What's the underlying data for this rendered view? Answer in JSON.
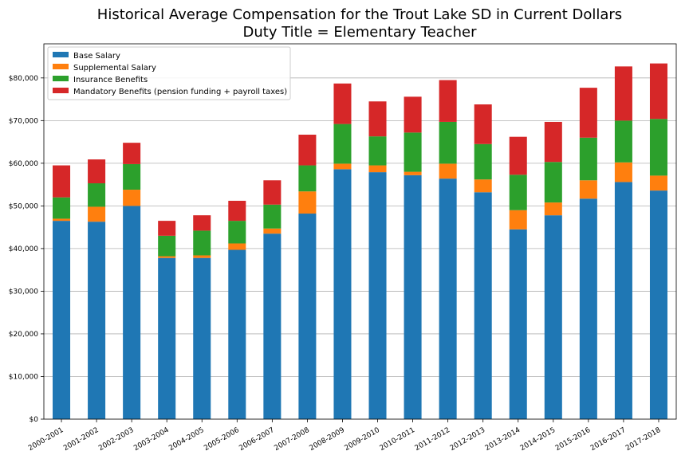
{
  "chart_data": {
    "type": "bar",
    "stacked": true,
    "title": "Historical Average Compensation for the Trout Lake SD in Current Dollars",
    "subtitle": "Duty Title = Elementary Teacher",
    "xlabel": "",
    "ylabel": "",
    "ylim": [
      0,
      88000
    ],
    "y_ticks": [
      0,
      10000,
      20000,
      30000,
      40000,
      50000,
      60000,
      70000,
      80000
    ],
    "y_tick_labels": [
      "$0",
      "$10,000",
      "$20,000",
      "$30,000",
      "$40,000",
      "$50,000",
      "$60,000",
      "$70,000",
      "$80,000"
    ],
    "grid": "horizontal",
    "legend_position": "top-left",
    "categories": [
      "2000-2001",
      "2001-2002",
      "2002-2003",
      "2003-2004",
      "2004-2005",
      "2005-2006",
      "2006-2007",
      "2007-2008",
      "2008-2009",
      "2009-2010",
      "2010-2011",
      "2011-2012",
      "2012-2013",
      "2013-2014",
      "2014-2015",
      "2015-2016",
      "2016-2017",
      "2017-2018"
    ],
    "series": [
      {
        "name": "Base Salary",
        "color": "#1f77b4",
        "values": [
          46500,
          46300,
          50000,
          37800,
          37800,
          39700,
          43500,
          48200,
          58600,
          57900,
          57200,
          56400,
          53200,
          44500,
          47800,
          51700,
          55600,
          53600
        ]
      },
      {
        "name": "Supplemental Salary",
        "color": "#ff7f0e",
        "values": [
          500,
          3500,
          3800,
          400,
          600,
          1500,
          1200,
          5200,
          1300,
          1600,
          800,
          3500,
          3000,
          4500,
          3000,
          4300,
          4600,
          3500
        ]
      },
      {
        "name": "Insurance Benefits",
        "color": "#2ca02c",
        "values": [
          5000,
          5500,
          6000,
          4800,
          5800,
          5300,
          5600,
          6100,
          9300,
          6800,
          9200,
          9800,
          8300,
          8300,
          9500,
          10000,
          9800,
          13300
        ]
      },
      {
        "name": "Mandatory Benefits (pension funding + payroll taxes)",
        "color": "#d62728",
        "values": [
          7500,
          5600,
          5000,
          3500,
          3600,
          4700,
          5700,
          7200,
          9500,
          8200,
          8400,
          9800,
          9300,
          8900,
          9400,
          11700,
          12700,
          13000
        ]
      }
    ]
  }
}
